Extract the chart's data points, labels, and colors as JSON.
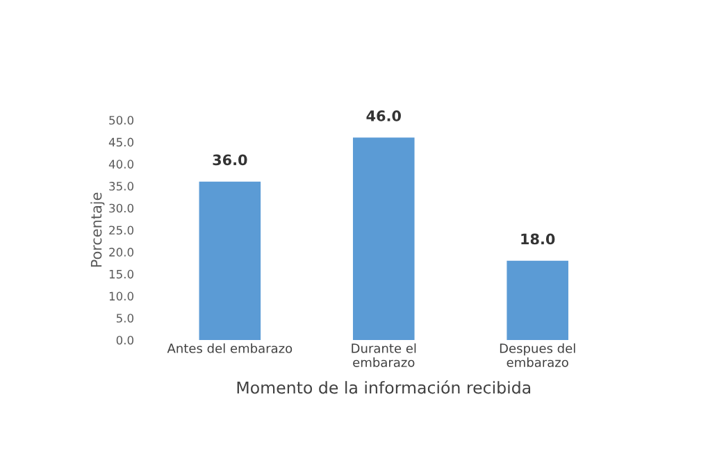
{
  "chart_data": {
    "type": "bar",
    "xlabel": "Momento de la información recibida",
    "ylabel": "Porcentaje",
    "categories": [
      "Antes del embarazo",
      "Durante el\nembarazo",
      "Despues del\nembarazo"
    ],
    "values": [
      36.0,
      46.0,
      18.0
    ],
    "value_labels": [
      "36.0",
      "46.0",
      "18.0"
    ],
    "color": "#5b9bd5",
    "ylim": [
      0,
      50
    ],
    "yticks": [
      {
        "value": 0,
        "label": "0.0"
      },
      {
        "value": 5,
        "label": "5.0"
      },
      {
        "value": 10,
        "label": "10.0"
      },
      {
        "value": 15,
        "label": "15.0"
      },
      {
        "value": 20,
        "label": "20.0"
      },
      {
        "value": 25,
        "label": "25.0"
      },
      {
        "value": 30,
        "label": "30.0"
      },
      {
        "value": 35,
        "label": "35.0"
      },
      {
        "value": 40,
        "label": "40.0"
      },
      {
        "value": 45,
        "label": "45.0"
      },
      {
        "value": 50,
        "label": "50.0"
      }
    ],
    "grid": false
  }
}
